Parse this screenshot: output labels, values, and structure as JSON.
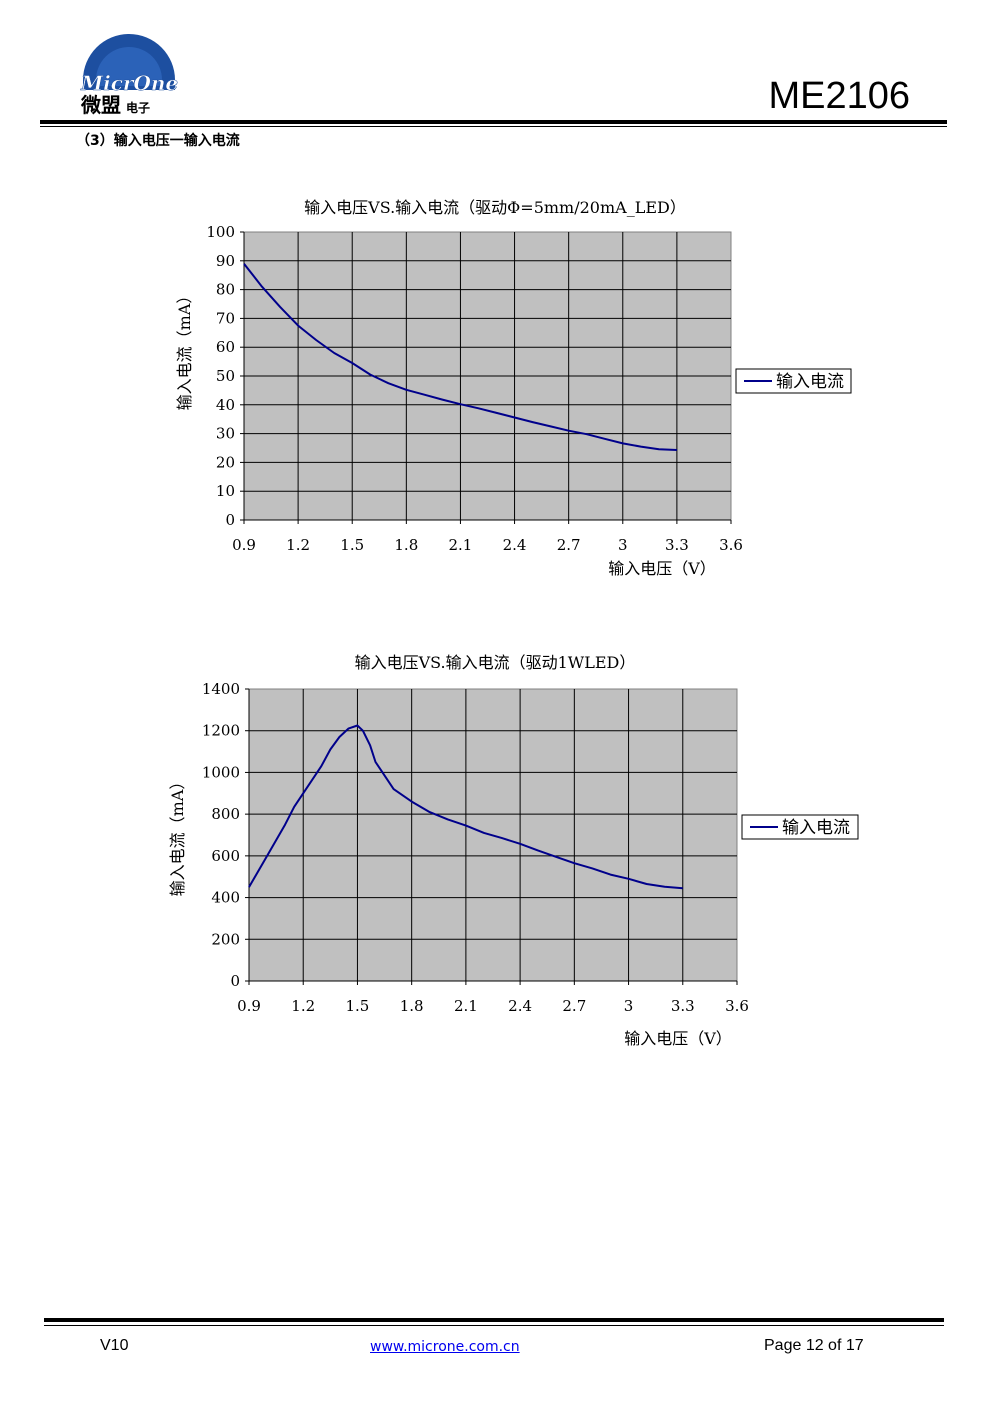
{
  "header": {
    "logo_text": "MicrOne",
    "logo_cn_main": "微盟",
    "logo_cn_sub": "电子",
    "part_number": "ME2106",
    "colors": {
      "logo_blue": "#1d4fa0",
      "rule": "#000000"
    }
  },
  "section_title": "（3）输入电压一输入电流",
  "chart_data": [
    {
      "type": "line",
      "title": "输入电压VS.输入电流（驱动Φ=5mm/20mA_LED）",
      "xlabel": "输入电压（V）",
      "ylabel": "输入电流（mA）",
      "x_ticks": [
        "0.9",
        "1.2",
        "1.5",
        "1.8",
        "2.1",
        "2.4",
        "2.7",
        "3",
        "3.3",
        "3.6"
      ],
      "y_ticks": [
        "0",
        "10",
        "20",
        "30",
        "40",
        "50",
        "60",
        "70",
        "80",
        "90",
        "100"
      ],
      "xlim": [
        0.9,
        3.6
      ],
      "ylim": [
        0,
        100
      ],
      "grid": true,
      "plot_background": "#c0c0c0",
      "line_color": "#00008b",
      "legend_position": "right",
      "series": [
        {
          "name": "输入电流",
          "x": [
            0.9,
            1.0,
            1.1,
            1.2,
            1.3,
            1.4,
            1.5,
            1.6,
            1.7,
            1.8,
            1.9,
            2.0,
            2.1,
            2.2,
            2.3,
            2.4,
            2.5,
            2.6,
            2.7,
            2.8,
            2.9,
            3.0,
            3.1,
            3.2,
            3.3
          ],
          "y": [
            89,
            81,
            74,
            67.5,
            62.5,
            58,
            54.5,
            50.5,
            47.5,
            45.2,
            43.5,
            41.8,
            40.2,
            38.8,
            37.2,
            35.6,
            34,
            32.5,
            31,
            29.8,
            28.2,
            26.6,
            25.5,
            24.6,
            24.3
          ]
        }
      ]
    },
    {
      "type": "line",
      "title": "输入电压VS.输入电流（驱动1WLED）",
      "xlabel": "输入电压（V）",
      "ylabel": "输入电流（mA）",
      "x_ticks": [
        "0.9",
        "1.2",
        "1.5",
        "1.8",
        "2.1",
        "2.4",
        "2.7",
        "3",
        "3.3",
        "3.6"
      ],
      "y_ticks": [
        "0",
        "200",
        "400",
        "600",
        "800",
        "1000",
        "1200",
        "1400"
      ],
      "xlim": [
        0.9,
        3.6
      ],
      "ylim": [
        0,
        1400
      ],
      "grid": true,
      "plot_background": "#c0c0c0",
      "line_color": "#00008b",
      "legend_position": "right",
      "series": [
        {
          "name": "输入电流",
          "x": [
            0.9,
            1.0,
            1.1,
            1.15,
            1.2,
            1.3,
            1.35,
            1.4,
            1.45,
            1.5,
            1.53,
            1.57,
            1.6,
            1.7,
            1.8,
            1.9,
            2.0,
            2.1,
            2.2,
            2.3,
            2.4,
            2.5,
            2.6,
            2.7,
            2.8,
            2.9,
            3.0,
            3.1,
            3.2,
            3.3
          ],
          "y": [
            450,
            600,
            750,
            835,
            900,
            1030,
            1110,
            1170,
            1210,
            1225,
            1200,
            1130,
            1050,
            920,
            860,
            810,
            775,
            745,
            710,
            685,
            658,
            625,
            595,
            565,
            540,
            510,
            490,
            465,
            452,
            445
          ]
        }
      ]
    }
  ],
  "footer": {
    "version": "V10",
    "website": "www.microne.com.cn",
    "page": "Page 12 of 17"
  }
}
